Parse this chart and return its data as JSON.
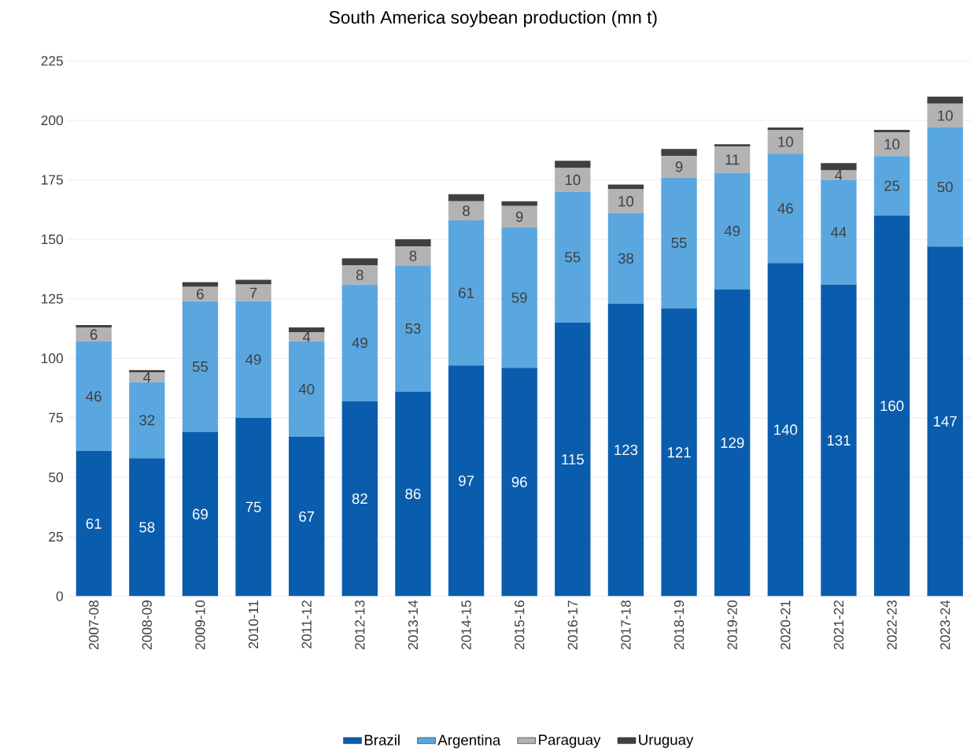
{
  "chart_data": {
    "type": "bar",
    "stacked": true,
    "title": "South America soybean production (mn t)",
    "categories": [
      "2007-08",
      "2008-09",
      "2009-10",
      "2010-11",
      "2011-12",
      "2012-13",
      "2013-14",
      "2014-15",
      "2015-16",
      "2016-17",
      "2017-18",
      "2018-19",
      "2019-20",
      "2020-21",
      "2021-22",
      "2022-23",
      "2023-24"
    ],
    "series": [
      {
        "name": "Brazil",
        "color": "#0a5cad",
        "values": [
          61,
          58,
          69,
          75,
          67,
          82,
          86,
          97,
          96,
          115,
          123,
          121,
          129,
          140,
          131,
          160,
          147
        ],
        "value_labels": [
          "61",
          "58",
          "69",
          "75",
          "67",
          "82",
          "86",
          "97",
          "96",
          "115",
          "123",
          "121",
          "129",
          "140",
          "131",
          "160",
          "147"
        ]
      },
      {
        "name": "Argentina",
        "color": "#5aa7e0",
        "values": [
          46,
          32,
          55,
          49,
          40,
          49,
          53,
          61,
          59,
          55,
          38,
          55,
          49,
          46,
          44,
          25,
          50
        ],
        "value_labels": [
          "46",
          "32",
          "55",
          "49",
          "40",
          "49",
          "53",
          "61",
          "59",
          "55",
          "38",
          "55",
          "49",
          "46",
          "44",
          "25",
          "50"
        ]
      },
      {
        "name": "Paraguay",
        "color": "#b3b3b3",
        "values": [
          6,
          4,
          6,
          7,
          4,
          8,
          8,
          8,
          9,
          10,
          10,
          9,
          11,
          10,
          4,
          10,
          10
        ],
        "value_labels": [
          "6",
          "4",
          "6",
          "7",
          "4",
          "8",
          "8",
          "8",
          "9",
          "10",
          "10",
          "9",
          "11",
          "10",
          "4",
          "10",
          "10"
        ]
      },
      {
        "name": "Uruguay",
        "color": "#404040",
        "values": [
          1,
          1,
          2,
          2,
          2,
          3,
          3,
          3,
          2,
          3,
          2,
          3,
          1,
          1,
          3,
          1,
          3
        ]
      }
    ],
    "ylim": [
      0,
      225
    ],
    "yticks": [
      0,
      25,
      50,
      75,
      100,
      125,
      150,
      175,
      200,
      225
    ],
    "grid": "y",
    "legend": "bottom"
  }
}
